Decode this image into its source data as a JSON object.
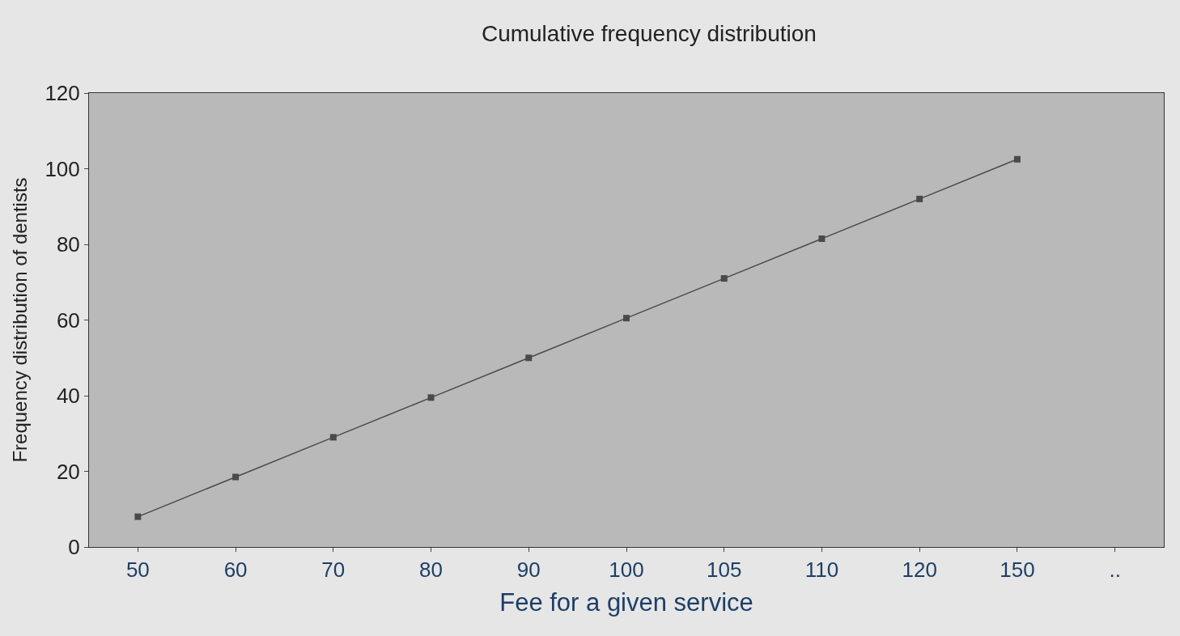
{
  "chart_data": {
    "type": "line",
    "title": "Cumulative frequency distribution",
    "xlabel": "Fee for a given service",
    "ylabel": "Frequency distribution of dentists",
    "categories": [
      "50",
      "60",
      "70",
      "80",
      "90",
      "100",
      "105",
      "110",
      "120",
      "150",
      ".."
    ],
    "series": [
      {
        "color": "#4a4a4a",
        "values": [
          8,
          18.5,
          29,
          39.5,
          50,
          60.5,
          71,
          81.5,
          92,
          102.5,
          null
        ]
      }
    ],
    "ylim": [
      0,
      120
    ],
    "yticks": [
      0,
      20,
      40,
      60,
      80,
      100,
      120
    ],
    "grid": false,
    "legend": false,
    "marker": "square",
    "line_style": "solid"
  }
}
